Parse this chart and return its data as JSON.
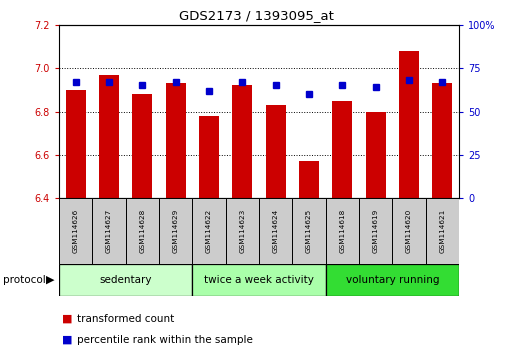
{
  "title": "GDS2173 / 1393095_at",
  "samples": [
    "GSM114626",
    "GSM114627",
    "GSM114628",
    "GSM114629",
    "GSM114622",
    "GSM114623",
    "GSM114624",
    "GSM114625",
    "GSM114618",
    "GSM114619",
    "GSM114620",
    "GSM114621"
  ],
  "transformed_count": [
    6.9,
    6.97,
    6.88,
    6.93,
    6.78,
    6.92,
    6.83,
    6.57,
    6.85,
    6.8,
    7.08,
    6.93
  ],
  "percentile_rank": [
    67,
    67,
    65,
    67,
    62,
    67,
    65,
    60,
    65,
    64,
    68,
    67
  ],
  "ylim_left": [
    6.4,
    7.2
  ],
  "ylim_right": [
    0,
    100
  ],
  "yticks_left": [
    6.4,
    6.6,
    6.8,
    7.0,
    7.2
  ],
  "yticks_right": [
    0,
    25,
    50,
    75,
    100
  ],
  "ytick_labels_right": [
    "0",
    "25",
    "50",
    "75",
    "100%"
  ],
  "bar_color": "#cc0000",
  "dot_color": "#0000cc",
  "base_value": 6.4,
  "groups": [
    {
      "label": "sedentary",
      "indices": [
        0,
        1,
        2,
        3
      ],
      "color": "#ccffcc"
    },
    {
      "label": "twice a week activity",
      "indices": [
        4,
        5,
        6,
        7
      ],
      "color": "#aaffaa"
    },
    {
      "label": "voluntary running",
      "indices": [
        8,
        9,
        10,
        11
      ],
      "color": "#33dd33"
    }
  ],
  "protocol_label": "protocol",
  "legend_bar_label": "transformed count",
  "legend_dot_label": "percentile rank within the sample",
  "bg_color": "#ffffff",
  "plot_bg_color": "#ffffff",
  "tick_label_color_left": "#cc0000",
  "tick_label_color_right": "#0000cc",
  "sample_box_color": "#cccccc"
}
